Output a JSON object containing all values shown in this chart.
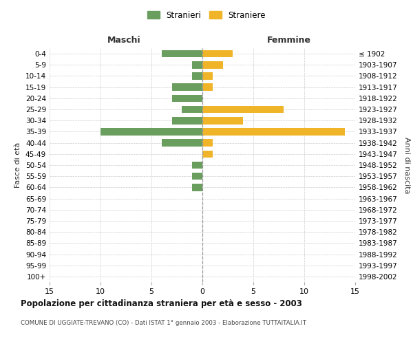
{
  "age_groups": [
    "0-4",
    "5-9",
    "10-14",
    "15-19",
    "20-24",
    "25-29",
    "30-34",
    "35-39",
    "40-44",
    "45-49",
    "50-54",
    "55-59",
    "60-64",
    "65-69",
    "70-74",
    "75-79",
    "80-84",
    "85-89",
    "90-94",
    "95-99",
    "100+"
  ],
  "birth_years": [
    "1998-2002",
    "1993-1997",
    "1988-1992",
    "1983-1987",
    "1978-1982",
    "1973-1977",
    "1968-1972",
    "1963-1967",
    "1958-1962",
    "1953-1957",
    "1948-1952",
    "1943-1947",
    "1938-1942",
    "1933-1937",
    "1928-1932",
    "1923-1927",
    "1918-1922",
    "1913-1917",
    "1908-1912",
    "1903-1907",
    "≤ 1902"
  ],
  "maschi": [
    4,
    1,
    1,
    3,
    3,
    2,
    3,
    10,
    4,
    0,
    1,
    1,
    1,
    0,
    0,
    0,
    0,
    0,
    0,
    0,
    0
  ],
  "femmine": [
    3,
    2,
    1,
    1,
    0,
    8,
    4,
    14,
    1,
    1,
    0,
    0,
    0,
    0,
    0,
    0,
    0,
    0,
    0,
    0,
    0
  ],
  "color_maschi": "#6a9e5e",
  "color_femmine": "#f0b429",
  "title": "Popolazione per cittadinanza straniera per età e sesso - 2003",
  "subtitle": "COMUNE DI UGGIATE-TREVANO (CO) - Dati ISTAT 1° gennaio 2003 - Elaborazione TUTTAITALIA.IT",
  "label_maschi": "Maschi",
  "label_femmine": "Femmine",
  "ylabel_left": "Fasce di età",
  "ylabel_right": "Anni di nascita",
  "legend_maschi": "Stranieri",
  "legend_femmine": "Straniere",
  "xlim": 15,
  "background_color": "#ffffff",
  "grid_color": "#cccccc"
}
